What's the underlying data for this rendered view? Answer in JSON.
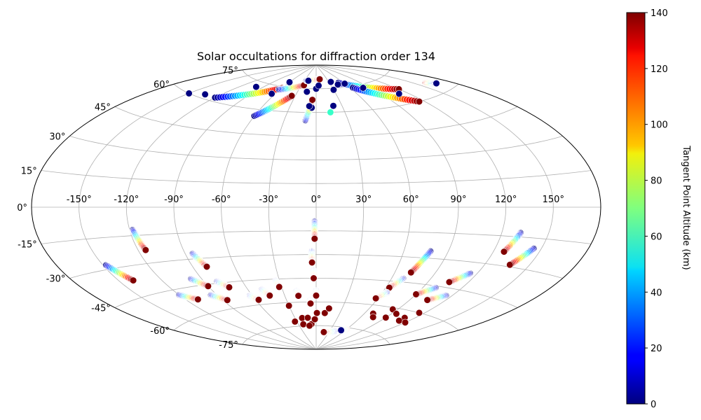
{
  "chart_data": {
    "type": "scatter",
    "projection": "aitoff",
    "title": "Solar occultations for diffraction order 134",
    "grid": true,
    "lon_ticks": [
      {
        "value": -150,
        "label": "-150°"
      },
      {
        "value": -120,
        "label": "-120°"
      },
      {
        "value": -90,
        "label": "-90°"
      },
      {
        "value": -60,
        "label": "-60°"
      },
      {
        "value": -30,
        "label": "-30°"
      },
      {
        "value": 0,
        "label": "0°"
      },
      {
        "value": 30,
        "label": "30°"
      },
      {
        "value": 60,
        "label": "60°"
      },
      {
        "value": 90,
        "label": "90°"
      },
      {
        "value": 120,
        "label": "120°"
      },
      {
        "value": 150,
        "label": "150°"
      }
    ],
    "lat_ticks": [
      {
        "value": 75,
        "label": "75°"
      },
      {
        "value": 60,
        "label": "60°"
      },
      {
        "value": 45,
        "label": "45°"
      },
      {
        "value": 30,
        "label": "30°"
      },
      {
        "value": 15,
        "label": "15°"
      },
      {
        "value": 0,
        "label": "0°"
      },
      {
        "value": -15,
        "label": "-15°"
      },
      {
        "value": -30,
        "label": "-30°"
      },
      {
        "value": -45,
        "label": "-45°"
      },
      {
        "value": -60,
        "label": "-60°"
      },
      {
        "value": -75,
        "label": "-75°"
      }
    ],
    "colorbar": {
      "label": "Tangent Point Altitude (km)",
      "colormap": "jet",
      "range": [
        0,
        140
      ],
      "ticks": [
        {
          "value": 0,
          "label": "0"
        },
        {
          "value": 20,
          "label": "20"
        },
        {
          "value": 40,
          "label": "40"
        },
        {
          "value": 60,
          "label": "60"
        },
        {
          "value": 80,
          "label": "80"
        },
        {
          "value": 100,
          "label": "100"
        },
        {
          "value": 120,
          "label": "120"
        },
        {
          "value": 140,
          "label": "140"
        }
      ]
    },
    "tracks": [
      {
        "lon_start": -1,
        "lat_start": -9,
        "lon_end": -1,
        "lat_end": -20,
        "alt_start": 0,
        "alt_end": 140
      },
      {
        "lon_start": -3,
        "lat_start": -28,
        "lon_end": -3,
        "lat_end": -35,
        "alt_start": 0,
        "alt_end": 140
      },
      {
        "lon_start": -2,
        "lat_start": -40,
        "lon_end": -2,
        "lat_end": -45,
        "alt_start": 0,
        "alt_end": 140
      },
      {
        "lon_start": 0,
        "lat_start": -53,
        "lon_end": 0,
        "lat_end": -56,
        "alt_start": 0,
        "alt_end": 140
      },
      {
        "lon_start": -118,
        "lat_start": -12,
        "lon_end": -115,
        "lat_end": -23,
        "alt_start": 0,
        "alt_end": 140
      },
      {
        "lon_start": -148,
        "lat_start": -28,
        "lon_end": -140,
        "lat_end": -37,
        "alt_start": 0,
        "alt_end": 140
      },
      {
        "lon_start": -85,
        "lat_start": -27,
        "lon_end": -80,
        "lat_end": -35,
        "alt_start": 0,
        "alt_end": 140
      },
      {
        "lon_start": -98,
        "lat_start": -41,
        "lon_end": -90,
        "lat_end": -46,
        "alt_start": 0,
        "alt_end": 140
      },
      {
        "lon_start": -80,
        "lat_start": -44,
        "lon_end": -74,
        "lat_end": -48,
        "alt_start": 0,
        "alt_end": 140
      },
      {
        "lon_start": -120,
        "lat_start": -48,
        "lon_end": -110,
        "lat_end": -52,
        "alt_start": 0,
        "alt_end": 140
      },
      {
        "lon_start": -95,
        "lat_start": -51,
        "lon_end": -86,
        "lat_end": -55,
        "alt_start": 0,
        "alt_end": 140
      },
      {
        "lon_start": -62,
        "lat_start": -54,
        "lon_end": -57,
        "lat_end": -57,
        "alt_start": 0,
        "alt_end": 140
      },
      {
        "lon_start": -48,
        "lat_start": -51,
        "lon_end": -44,
        "lat_end": -55,
        "alt_start": 0,
        "alt_end": 140
      },
      {
        "lon_start": -33,
        "lat_start": -46,
        "lon_end": -32,
        "lat_end": -50,
        "alt_start": 0,
        "alt_end": 140
      },
      {
        "lon_start": -18,
        "lat_start": -53,
        "lon_end": -17,
        "lat_end": -56,
        "alt_start": 0,
        "alt_end": 140
      },
      {
        "lon_start": -6,
        "lat_start": -59,
        "lon_end": -6,
        "lat_end": -61,
        "alt_start": 0,
        "alt_end": 140
      },
      {
        "lon_start": 78,
        "lat_start": -26,
        "lon_end": 72,
        "lat_end": -39,
        "alt_start": 0,
        "alt_end": 140
      },
      {
        "lon_start": 69,
        "lat_start": -43,
        "lon_end": 63,
        "lat_end": -49,
        "alt_start": 0,
        "alt_end": 140
      },
      {
        "lon_start": 64,
        "lat_start": -52,
        "lon_end": 58,
        "lat_end": -56,
        "alt_start": 0,
        "alt_end": 140
      },
      {
        "lon_start": 132,
        "lat_start": -13,
        "lon_end": 127,
        "lat_end": -23,
        "alt_start": 0,
        "alt_end": 140
      },
      {
        "lon_start": 145,
        "lat_start": -20,
        "lon_end": 137,
        "lat_end": -29,
        "alt_start": 0,
        "alt_end": 140
      },
      {
        "lon_start": 115,
        "lat_start": -36,
        "lon_end": 106,
        "lat_end": -42,
        "alt_start": 0,
        "alt_end": 140
      },
      {
        "lon_start": 100,
        "lat_start": -46,
        "lon_end": 90,
        "lat_end": -51,
        "alt_start": 0,
        "alt_end": 140
      },
      {
        "lon_start": 115,
        "lat_start": -49,
        "lon_end": 105,
        "lat_end": -53,
        "alt_start": 0,
        "alt_end": 140
      },
      {
        "lon_start": 40,
        "lat_start": -78,
        "lon_end": 18,
        "lat_end": -79,
        "alt_start": 0,
        "alt_end": 140
      },
      {
        "lon_start": 60,
        "lat_start": -76,
        "lon_end": 52,
        "lat_end": -77,
        "alt_start": 140,
        "alt_end": 0
      },
      {
        "lon_start": -120,
        "lat_start": 62,
        "lon_end": -60,
        "lat_end": 74,
        "alt_start": 0,
        "alt_end": 140
      },
      {
        "lon_start": -62,
        "lat_start": 73,
        "lon_end": -25,
        "lat_end": 77,
        "alt_start": 0,
        "alt_end": 140
      },
      {
        "lon_start": -60,
        "lat_start": 56,
        "lon_end": -35,
        "lat_end": 70,
        "alt_start": 0,
        "alt_end": 140
      },
      {
        "lon_start": -10,
        "lat_start": 55,
        "lon_end": -5,
        "lat_end": 68,
        "alt_start": 0,
        "alt_end": 140
      },
      {
        "lon_start": 50,
        "lat_start": 78,
        "lon_end": 120,
        "lat_end": 68,
        "alt_start": 0,
        "alt_end": 140
      },
      {
        "lon_start": 65,
        "lat_start": 74,
        "lon_end": 115,
        "lat_end": 60,
        "alt_start": 0,
        "alt_end": 140
      },
      {
        "lon_start": 160,
        "lat_start": 66,
        "lon_end": 167,
        "lat_end": 64,
        "alt_start": 140,
        "alt_end": 0
      },
      {
        "lon_start": -25,
        "lat_start": 80,
        "lon_end": 10,
        "lat_end": 81,
        "alt_start": 0,
        "alt_end": 140
      }
    ],
    "points": [
      {
        "lon": -30,
        "lat": -62,
        "alt": 140
      },
      {
        "lon": -33,
        "lat": -72,
        "alt": 140
      },
      {
        "lon": -20,
        "lat": -70,
        "alt": 140
      },
      {
        "lon": -12,
        "lat": -70,
        "alt": 140
      },
      {
        "lon": -8,
        "lat": -74,
        "alt": 140
      },
      {
        "lon": -22,
        "lat": -74,
        "alt": 140
      },
      {
        "lon": -12,
        "lat": -75,
        "alt": 140
      },
      {
        "lon": -2,
        "lat": -71,
        "alt": 140
      },
      {
        "lon": 1,
        "lat": -67,
        "alt": 140
      },
      {
        "lon": 11,
        "lat": -67,
        "alt": 140
      },
      {
        "lon": 15,
        "lat": -64,
        "alt": 140
      },
      {
        "lon": 70,
        "lat": -65,
        "alt": 140
      },
      {
        "lon": 75,
        "lat": -67,
        "alt": 140
      },
      {
        "lon": 85,
        "lat": -61,
        "alt": 140
      },
      {
        "lon": 95,
        "lat": -63,
        "alt": 140
      },
      {
        "lon": 90,
        "lat": -66,
        "alt": 140
      },
      {
        "lon": 110,
        "lat": -64,
        "alt": 140
      },
      {
        "lon": 110,
        "lat": -66,
        "alt": 140
      },
      {
        "lon": 120,
        "lat": -66,
        "alt": 140
      },
      {
        "lon": 115,
        "lat": -60,
        "alt": 140
      },
      {
        "lon": -100,
        "lat": 72,
        "alt": 0
      },
      {
        "lon": -65,
        "lat": 70,
        "alt": 0
      },
      {
        "lon": -15,
        "lat": 73,
        "alt": 0
      },
      {
        "lon": 0,
        "lat": 75,
        "alt": 0
      },
      {
        "lon": 5,
        "lat": 77,
        "alt": 0
      },
      {
        "lon": 20,
        "lat": 64,
        "alt": 0
      },
      {
        "lon": 30,
        "lat": 74,
        "alt": 0
      },
      {
        "lon": 45,
        "lat": 77,
        "alt": 0
      },
      {
        "lon": 60,
        "lat": 77,
        "alt": 0
      },
      {
        "lon": 80,
        "lat": 73,
        "alt": 0
      },
      {
        "lon": 110,
        "lat": 66,
        "alt": 0
      },
      {
        "lon": -150,
        "lat": 60,
        "alt": 0
      },
      {
        "lon": -135,
        "lat": 62,
        "alt": 0
      },
      {
        "lon": -60,
        "lat": 78,
        "alt": 0
      },
      {
        "lon": -20,
        "lat": 80,
        "alt": 0
      },
      {
        "lon": 35,
        "lat": 79,
        "alt": 0
      },
      {
        "lon": -5,
        "lat": 63,
        "alt": 0
      },
      {
        "lon": 15,
        "lat": 60,
        "alt": 60
      },
      {
        "lon": -8,
        "lat": 64,
        "alt": 0
      }
    ]
  }
}
